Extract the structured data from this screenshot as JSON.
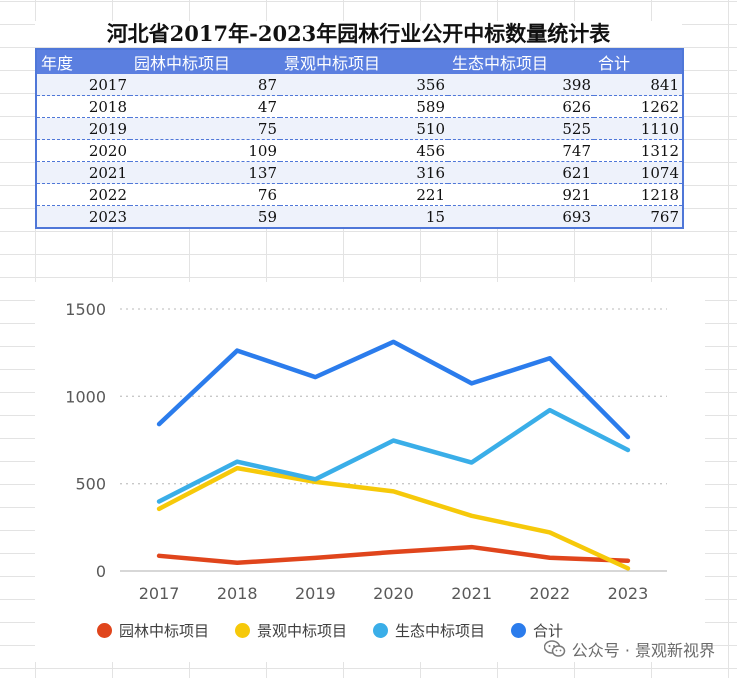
{
  "title": "河北省2017年-2023年园林行业公开中标数量统计表",
  "table": {
    "headers": [
      "年度",
      "园林中标项目",
      "景观中标项目",
      "生态中标项目",
      "合计"
    ],
    "rows": [
      [
        "2017",
        "87",
        "356",
        "398",
        "841"
      ],
      [
        "2018",
        "47",
        "589",
        "626",
        "1262"
      ],
      [
        "2019",
        "75",
        "510",
        "525",
        "1110"
      ],
      [
        "2020",
        "109",
        "456",
        "747",
        "1312"
      ],
      [
        "2021",
        "137",
        "316",
        "621",
        "1074"
      ],
      [
        "2022",
        "76",
        "221",
        "921",
        "1218"
      ],
      [
        "2023",
        "59",
        "15",
        "693",
        "767"
      ]
    ]
  },
  "chart_data": {
    "type": "line",
    "x": [
      "2017",
      "2018",
      "2019",
      "2020",
      "2021",
      "2022",
      "2023"
    ],
    "ylim": [
      0,
      1500
    ],
    "yticks": [
      "0",
      "500",
      "1000",
      "1500"
    ],
    "grid": "horizontal dotted",
    "legend_position": "bottom",
    "series": [
      {
        "name": "园林中标项目",
        "color": "#e0451c",
        "values": [
          87,
          47,
          75,
          109,
          137,
          76,
          59
        ]
      },
      {
        "name": "景观中标项目",
        "color": "#f6c90a",
        "values": [
          356,
          589,
          510,
          456,
          316,
          221,
          15
        ]
      },
      {
        "name": "生态中标项目",
        "color": "#3aaee8",
        "values": [
          398,
          626,
          525,
          747,
          621,
          921,
          693
        ]
      },
      {
        "name": "合计",
        "color": "#2b7cec",
        "values": [
          841,
          1262,
          1110,
          1312,
          1074,
          1218,
          767
        ]
      }
    ]
  },
  "watermark": {
    "icon": "wechat-icon",
    "text": "公众号 · 景观新视界"
  }
}
